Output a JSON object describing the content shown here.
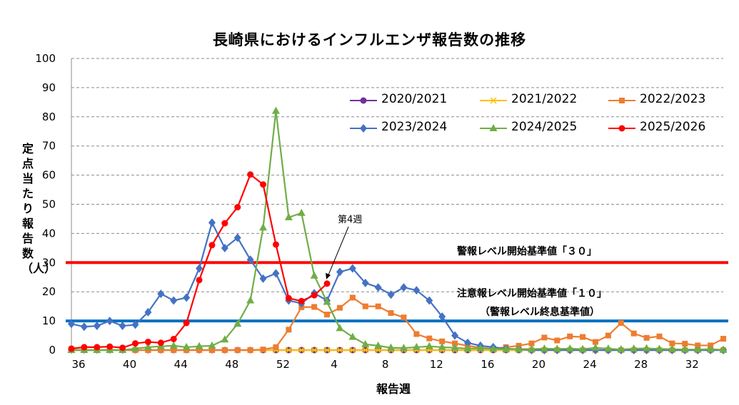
{
  "chart_data": {
    "type": "line",
    "title": "長崎県におけるインフルエンザ報告数の推移",
    "xlabel": "報告週",
    "ylabel": "定点当たり報告数（人）",
    "ylim": [
      0,
      100
    ],
    "yticks": [
      "0",
      "10",
      "20",
      "30",
      "40",
      "50",
      "60",
      "70",
      "80",
      "90",
      "100"
    ],
    "xtick_labels": [
      "36",
      "40",
      "44",
      "48",
      "52",
      "4",
      "8",
      "12",
      "16",
      "20",
      "24",
      "28",
      "32"
    ],
    "grid": "horizontal dashed",
    "legend_position": "top-right",
    "categories": [
      "36",
      "37",
      "38",
      "39",
      "40",
      "41",
      "42",
      "43",
      "44",
      "45",
      "46",
      "47",
      "48",
      "49",
      "50",
      "51",
      "52",
      "1",
      "2",
      "3",
      "4",
      "5",
      "6",
      "7",
      "8",
      "9",
      "10",
      "11",
      "12",
      "13",
      "14",
      "15",
      "16",
      "17",
      "18",
      "19",
      "20",
      "21",
      "22",
      "23",
      "24",
      "25",
      "26",
      "27",
      "28",
      "29",
      "30",
      "31",
      "32",
      "33",
      "34",
      "35"
    ],
    "series": [
      {
        "name": "2020/2021",
        "color": "#7030A0",
        "marker": "circle",
        "values": [
          0,
          0,
          0,
          0,
          0,
          0,
          0,
          0,
          0,
          0,
          0,
          0,
          0,
          0,
          0,
          0,
          0,
          0,
          0,
          0,
          0,
          0,
          0,
          0,
          0,
          0,
          0,
          0,
          0,
          0,
          0,
          0,
          0,
          0,
          0,
          0,
          0,
          0,
          0,
          0,
          0,
          0,
          0,
          0,
          0,
          0,
          0,
          0,
          0,
          0,
          0,
          0
        ]
      },
      {
        "name": "2021/2022",
        "color": "#FFC000",
        "marker": "x",
        "values": [
          0,
          0,
          0,
          0,
          0,
          0,
          0,
          0,
          0,
          0,
          0,
          0,
          0,
          0,
          0,
          0,
          0,
          0,
          0,
          0,
          0,
          0,
          0,
          0,
          0,
          0,
          0,
          0,
          0,
          0,
          0,
          0,
          0,
          0,
          0,
          0,
          0,
          0,
          0,
          0,
          0,
          0,
          0,
          0,
          0,
          0,
          0,
          0,
          0,
          0,
          0,
          0
        ]
      },
      {
        "name": "2022/2023",
        "color": "#ED7D31",
        "marker": "square",
        "values": [
          0,
          0,
          0,
          0,
          0,
          0,
          0,
          0,
          0,
          0,
          0,
          0,
          0,
          0,
          0,
          0.2,
          1,
          7,
          14.7,
          14.8,
          12.2,
          14.5,
          18,
          15,
          15,
          12.7,
          11.2,
          5.5,
          4,
          3,
          2.3,
          1.5,
          0.8,
          0.5,
          1,
          1.5,
          2.3,
          4.3,
          3.3,
          4.7,
          4.5,
          2.8,
          5,
          9.3,
          5.7,
          4.2,
          4.7,
          2.3,
          2.2,
          1.6,
          1.6,
          3.9
        ]
      },
      {
        "name": "2023/2024",
        "color": "#4472C4",
        "marker": "diamond",
        "values": [
          9,
          8,
          8.3,
          10,
          8.3,
          8.7,
          13,
          19.3,
          17,
          18,
          28,
          43.7,
          35,
          38.5,
          31,
          24.5,
          26.3,
          17,
          16,
          19.5,
          17,
          26.8,
          28,
          23,
          21.5,
          19,
          21.5,
          20.5,
          17,
          11.5,
          5,
          2.5,
          1.5,
          1,
          0.5,
          0.3,
          0,
          0,
          0,
          0,
          0,
          0,
          0,
          0,
          0,
          0,
          0,
          0,
          0,
          0,
          0,
          0
        ]
      },
      {
        "name": "2024/2025",
        "color": "#70AD47",
        "marker": "triangle",
        "values": [
          0,
          0,
          0,
          0,
          0,
          0.5,
          1,
          1.3,
          1.5,
          1,
          1.3,
          1.5,
          3.6,
          9,
          17,
          42,
          82,
          45.5,
          47,
          25.5,
          16.5,
          7.5,
          4.5,
          2,
          1.5,
          0.8,
          0.7,
          1,
          1.3,
          1,
          0.8,
          0.5,
          0.6,
          0.4,
          0.3,
          0.4,
          0.3,
          0.5,
          0.4,
          0.5,
          0.3,
          0.8,
          0.5,
          0.2,
          0.5,
          0.6,
          0.4,
          0.3,
          0.2,
          0.2,
          0.3,
          0.1
        ]
      },
      {
        "name": "2025/2026",
        "color": "#FF0000",
        "marker": "circle",
        "values": [
          0.5,
          1,
          1,
          1.2,
          0.8,
          2.3,
          2.8,
          2.5,
          3.8,
          9.3,
          24,
          36,
          43.5,
          49,
          60.2,
          56.8,
          36.2,
          17.8,
          16.8,
          18.8,
          22.8,
          null,
          null,
          null,
          null,
          null,
          null,
          null,
          null,
          null,
          null,
          null,
          null,
          null,
          null,
          null,
          null,
          null,
          null,
          null,
          null,
          null,
          null,
          null,
          null,
          null,
          null,
          null,
          null,
          null,
          null,
          null
        ]
      }
    ],
    "reference_lines": [
      {
        "value": 30,
        "color": "#FF0000",
        "label": "警報レベル開始基準値「３０」"
      },
      {
        "value": 10,
        "color": "#0070C0",
        "label": "注意報レベル開始基準値「１０」",
        "sublabel": "（警報レベル終息基準値）"
      }
    ],
    "annotation": {
      "label": "第4週",
      "category": "4"
    }
  }
}
